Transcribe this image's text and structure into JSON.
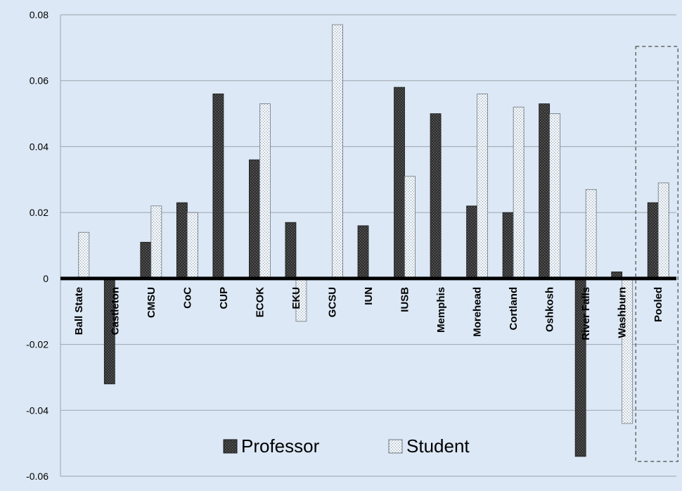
{
  "chart_data": {
    "type": "bar",
    "categories": [
      "Ball State",
      "Castleton",
      "CMSU",
      "CoC",
      "CUP",
      "ECOK",
      "EKU",
      "GCSU",
      "IUN",
      "IUSB",
      "Memphis",
      "Morehead",
      "Cortland",
      "Oshkosh",
      "River Falls",
      "Washburn",
      "Pooled"
    ],
    "series": [
      {
        "name": "Professor",
        "values": [
          0,
          -0.032,
          0.011,
          0.023,
          0.056,
          0.036,
          0.017,
          0,
          0.016,
          0.058,
          0.05,
          0.022,
          0.02,
          0.053,
          -0.054,
          0.002,
          0.023
        ]
      },
      {
        "name": "Student",
        "values": [
          0.014,
          0,
          0.022,
          0.02,
          0,
          0.053,
          -0.013,
          0.077,
          0,
          0.031,
          0,
          0.056,
          0.052,
          0.05,
          0.027,
          -0.044,
          0.029
        ]
      }
    ],
    "yticks": [
      "0.08",
      "0.06",
      "0.04",
      "0.02",
      "0",
      "-0.02",
      "-0.04",
      "-0.06"
    ],
    "ylim": [
      -0.06,
      0.08
    ],
    "grid": true,
    "legend_position": "bottom-center",
    "highlight_category": "Pooled",
    "colors": {
      "background": "#dce8f5",
      "professor": "#3a3a3a",
      "student": "#eef3f8",
      "gridline": "#9aa4ad",
      "zero_line": "#000000"
    }
  }
}
